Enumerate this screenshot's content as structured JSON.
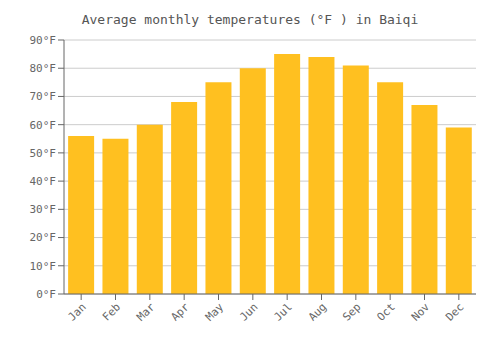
{
  "chart_data": {
    "type": "bar",
    "title": "Average monthly temperatures (°F ) in Baiqi",
    "categories": [
      "Jan",
      "Feb",
      "Mar",
      "Apr",
      "May",
      "Jun",
      "Jul",
      "Aug",
      "Sep",
      "Oct",
      "Nov",
      "Dec"
    ],
    "values": [
      56,
      55,
      60,
      68,
      75,
      80,
      85,
      84,
      81,
      75,
      67,
      59
    ],
    "color": "#FFC020",
    "ylim": [
      0,
      90
    ],
    "yticks": [
      {
        "value": 0,
        "label": "0°F"
      },
      {
        "value": 10,
        "label": "10°F"
      },
      {
        "value": 20,
        "label": "20°F"
      },
      {
        "value": 30,
        "label": "30°F"
      },
      {
        "value": 40,
        "label": "40°F"
      },
      {
        "value": 50,
        "label": "50°F"
      },
      {
        "value": 60,
        "label": "60°F"
      },
      {
        "value": 70,
        "label": "70°F"
      },
      {
        "value": 80,
        "label": "80°F"
      },
      {
        "value": 90,
        "label": "90°F"
      }
    ],
    "grid": true
  }
}
